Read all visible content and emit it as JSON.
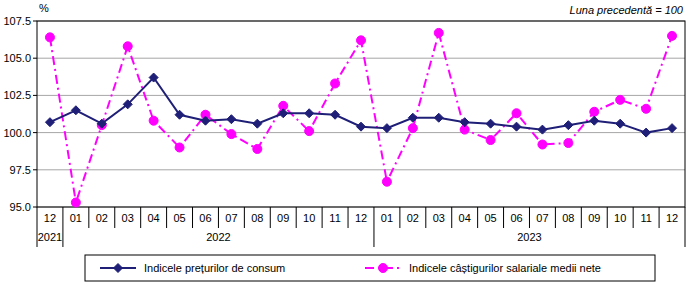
{
  "chart_data": {
    "type": "line",
    "subtitle": "Luna precedentă = 100",
    "y_label": "%",
    "categories": [
      "12",
      "01",
      "02",
      "03",
      "04",
      "05",
      "06",
      "07",
      "08",
      "09",
      "10",
      "11",
      "12",
      "01",
      "02",
      "03",
      "04",
      "05",
      "06",
      "07",
      "08",
      "09",
      "10",
      "11",
      "12"
    ],
    "year_groups": [
      {
        "label": "2021",
        "first": 0,
        "last": 0
      },
      {
        "label": "2022",
        "first": 1,
        "last": 12
      },
      {
        "label": "2023",
        "first": 13,
        "last": 24
      }
    ],
    "series": [
      {
        "name": "Indicele prețurilor de consum",
        "color": "#1f1f78",
        "marker": "diamond",
        "line_style": "solid",
        "values": [
          100.7,
          101.5,
          100.6,
          101.9,
          103.7,
          101.2,
          100.8,
          100.9,
          100.6,
          101.3,
          101.3,
          101.2,
          100.4,
          100.3,
          101.0,
          101.0,
          100.7,
          100.6,
          100.4,
          100.2,
          100.5,
          100.8,
          100.6,
          100.0,
          100.3
        ]
      },
      {
        "name": "Indicele câștigurilor salariale medii nete",
        "color": "#ff00ff",
        "marker": "circle",
        "line_style": "dashdot",
        "values": [
          106.4,
          95.3,
          100.5,
          105.8,
          100.8,
          99.0,
          101.2,
          99.9,
          98.9,
          101.8,
          100.1,
          103.3,
          106.2,
          96.7,
          100.3,
          106.7,
          100.2,
          99.5,
          101.3,
          99.2,
          99.3,
          101.4,
          102.2,
          101.6,
          106.5
        ]
      }
    ],
    "ylim": [
      95,
      107.5
    ],
    "yticks": [
      {
        "value": 95,
        "label": "95.0"
      },
      {
        "value": 97.5,
        "label": "97.5"
      },
      {
        "value": 100,
        "label": "100.0"
      },
      {
        "value": 102.5,
        "label": "102.5"
      },
      {
        "value": 105,
        "label": "105.0"
      },
      {
        "value": 107.5,
        "label": "107.5"
      }
    ],
    "grid": true,
    "legend": "bottom"
  }
}
